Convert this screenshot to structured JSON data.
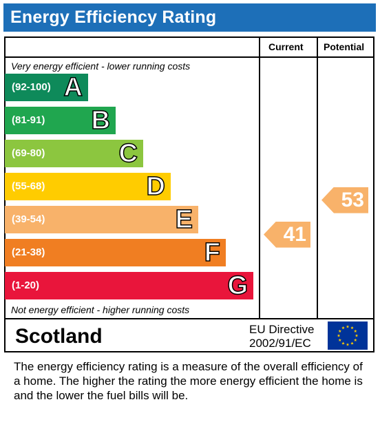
{
  "header": {
    "title": "Energy Efficiency Rating"
  },
  "columns": {
    "current": "Current",
    "potential": "Potential"
  },
  "notes": {
    "top": "Very energy efficient - lower running costs",
    "bottom": "Not energy efficient - higher running costs"
  },
  "chart_data": {
    "type": "bar",
    "title": "Energy Efficiency Rating",
    "categories": [
      "A",
      "B",
      "C",
      "D",
      "E",
      "F",
      "G"
    ],
    "ranges": [
      "(92-100)",
      "(81-91)",
      "(69-80)",
      "(55-68)",
      "(39-54)",
      "(21-38)",
      "(1-20)"
    ],
    "colors": [
      "#0e8a5a",
      "#20a64f",
      "#8cc63f",
      "#ffcc00",
      "#f8b26a",
      "#f07e22",
      "#e9153b"
    ],
    "current": {
      "value": 41,
      "band": "E",
      "color": "#f8b26a"
    },
    "potential": {
      "value": 53,
      "band": "E",
      "color": "#f8b26a"
    }
  },
  "footer": {
    "region": "Scotland",
    "directive_line1": "EU Directive",
    "directive_line2": "2002/91/EC",
    "flag_icon": "eu-flag-icon"
  },
  "description": "The energy efficiency rating is a measure of the overall efficiency of a home.  The higher the rating the more energy efficient the home is and the lower the fuel bills will be."
}
